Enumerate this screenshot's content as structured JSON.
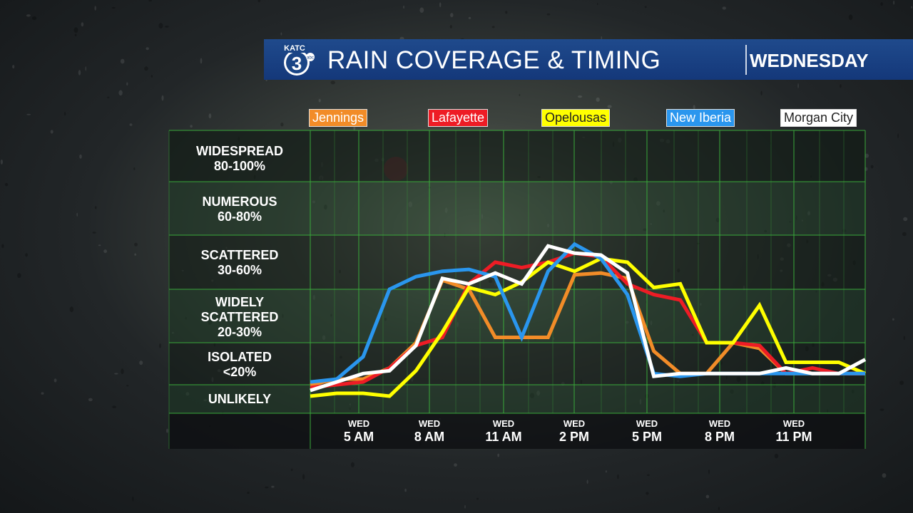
{
  "header": {
    "logo_station": "KATC",
    "logo_number": "3",
    "logo_network": "abc",
    "title": "RAIN COVERAGE & TIMING",
    "day": "WEDNESDAY"
  },
  "colors": {
    "header_bg": "#1a4586",
    "grid": "#39a83a",
    "Jennings": "#f28c28",
    "Lafayette": "#ee1c25",
    "Opelousas": "#ffff00",
    "New Iberia": "#2a96ee",
    "Morgan City": "#ffffff"
  },
  "chart_data": {
    "type": "line",
    "title": "RAIN COVERAGE & TIMING",
    "xlabel": "",
    "ylabel": "",
    "x_ticks": [
      {
        "day": "WED",
        "time": "5 AM",
        "hour": 5
      },
      {
        "day": "WED",
        "time": "8 AM",
        "hour": 8
      },
      {
        "day": "WED",
        "time": "11 AM",
        "hour": 11
      },
      {
        "day": "WED",
        "time": "2 PM",
        "hour": 14
      },
      {
        "day": "WED",
        "time": "5 PM",
        "hour": 17
      },
      {
        "day": "WED",
        "time": "8 PM",
        "hour": 20
      },
      {
        "day": "WED",
        "time": "11 PM",
        "hour": 23
      }
    ],
    "categories_y": [
      {
        "name": "WIDESPREAD",
        "range": "80-100%"
      },
      {
        "name": "NUMEROUS",
        "range": "60-80%"
      },
      {
        "name": "SCATTERED",
        "range": "30-60%"
      },
      {
        "name": "WIDELY SCATTERED",
        "range": "20-30%"
      },
      {
        "name": "ISOLATED",
        "range": "<20%"
      },
      {
        "name": "UNLIKELY",
        "range": ""
      }
    ],
    "ylim": [
      0,
      100
    ],
    "legend_position": "top",
    "x": [
      4,
      5,
      6,
      7,
      8,
      9,
      10,
      11,
      12,
      13,
      14,
      15,
      16,
      17,
      18,
      19,
      20,
      21,
      22,
      23,
      24,
      25
    ],
    "series": [
      {
        "name": "Jennings",
        "values": [
          5,
          7,
          7,
          11,
          20,
          35,
          30,
          21,
          21,
          21,
          38,
          39,
          36,
          17,
          9,
          9,
          20,
          18,
          9,
          9,
          9,
          9
        ]
      },
      {
        "name": "Lafayette",
        "values": [
          4,
          5,
          6,
          11,
          19,
          21,
          33,
          45,
          42,
          45,
          50,
          48,
          33,
          29,
          28,
          20,
          20,
          19,
          9,
          11,
          9,
          9
        ]
      },
      {
        "name": "Opelousas",
        "values": [
          1,
          2,
          2,
          1,
          10,
          22,
          31,
          29,
          34,
          45,
          40,
          47,
          45,
          31,
          33,
          20,
          20,
          27,
          13,
          13,
          13,
          9
        ]
      },
      {
        "name": "New Iberia",
        "values": [
          6,
          7,
          15,
          30,
          37,
          40,
          41,
          37,
          21,
          40,
          55,
          47,
          29,
          9,
          8,
          9,
          9,
          9,
          9,
          9,
          9,
          9
        ]
      },
      {
        "name": "Morgan City",
        "values": [
          3,
          6,
          9,
          10,
          19,
          36,
          33,
          39,
          33,
          54,
          50,
          49,
          39,
          8,
          9,
          9,
          9,
          9,
          11,
          9,
          9,
          14
        ]
      }
    ]
  }
}
